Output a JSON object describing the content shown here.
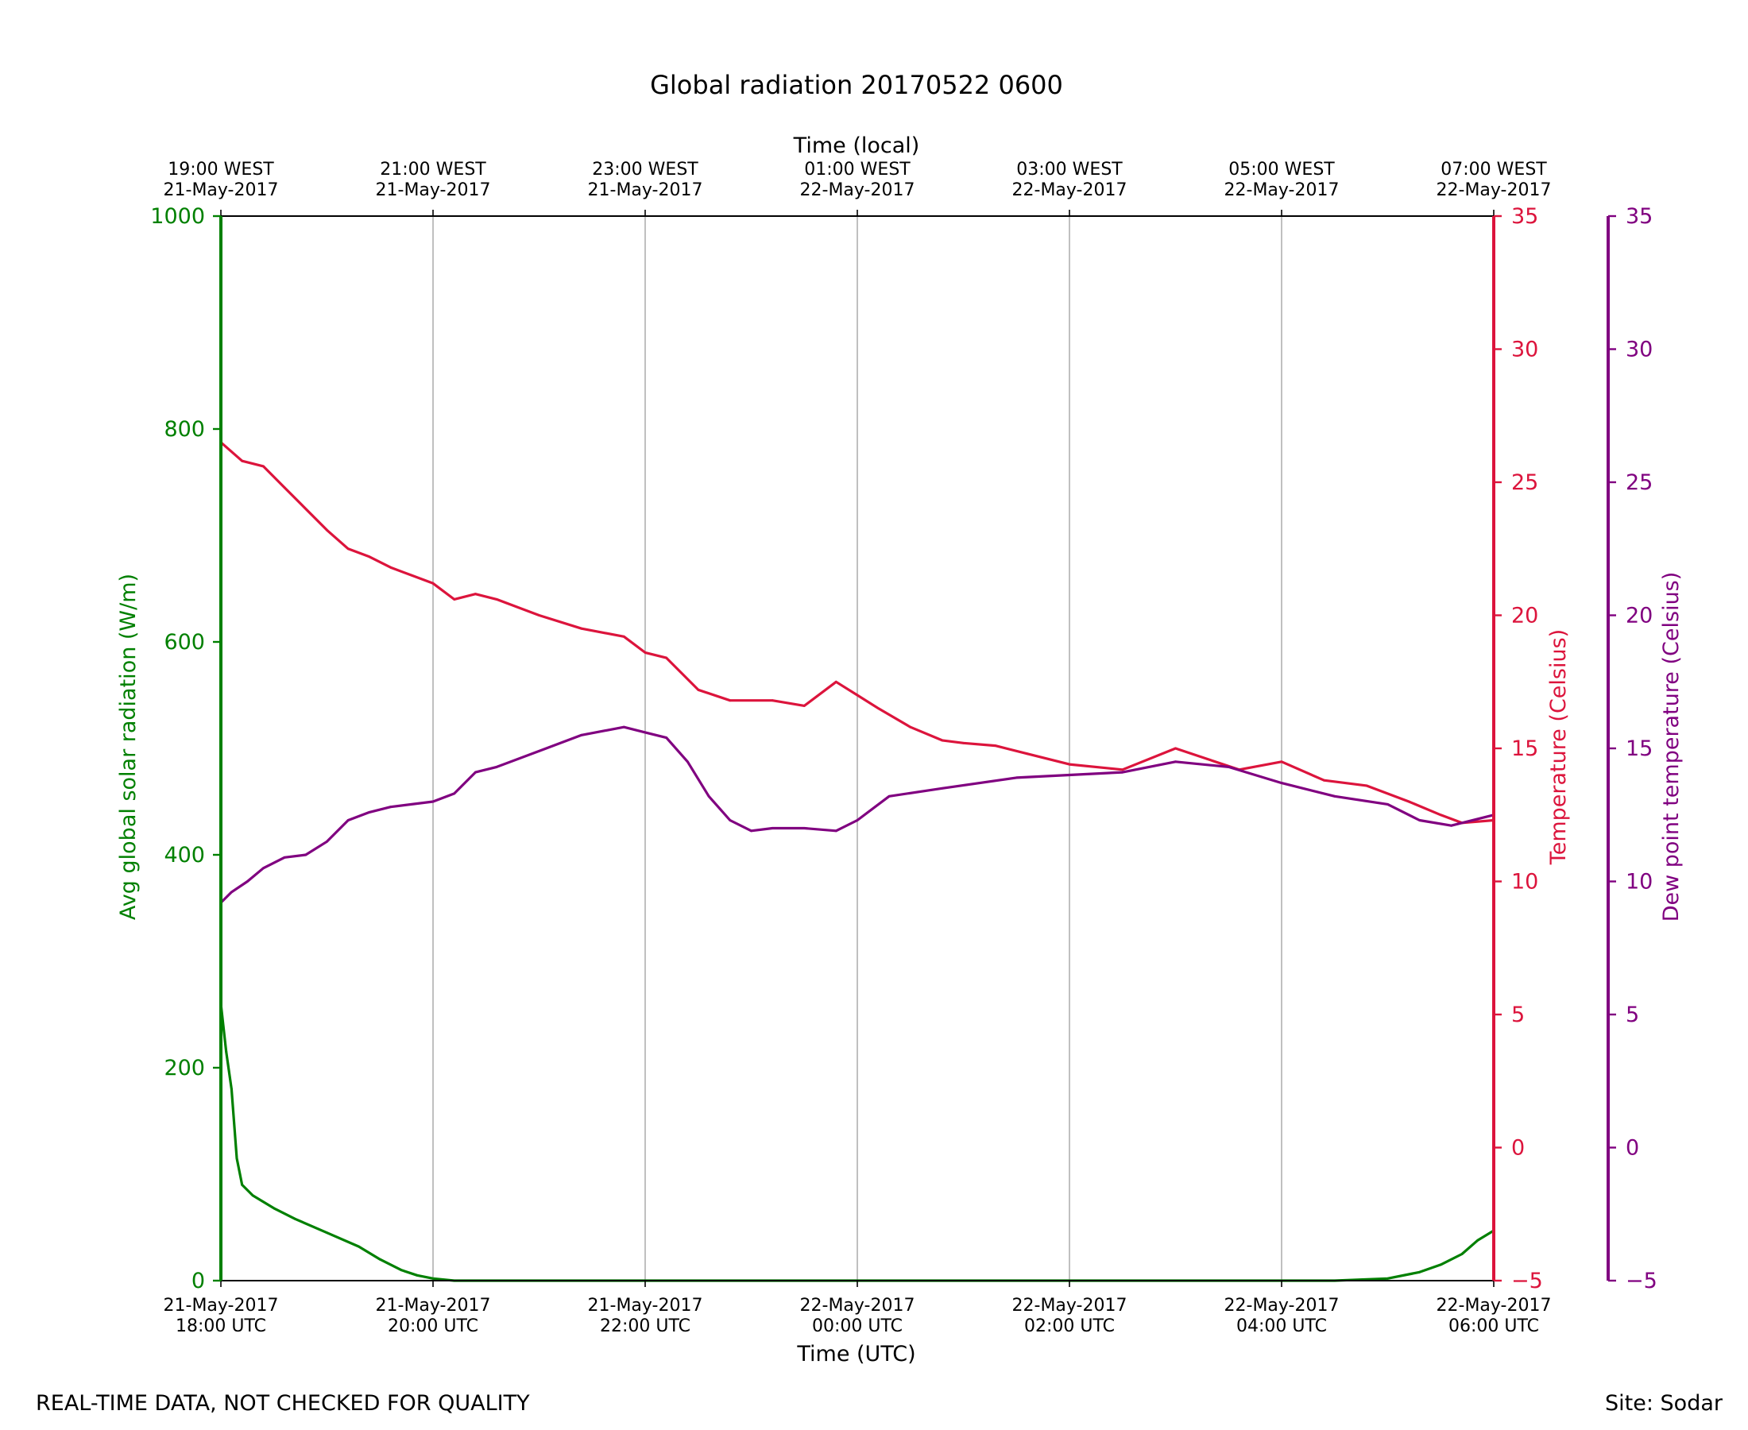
{
  "chart_data": {
    "type": "line",
    "title": "Global radiation 20170522 0600",
    "xlabel": "Time (UTC)",
    "xlabel_top": "Time (local)",
    "x_range_hours": [
      18,
      30
    ],
    "x_ticks_bottom": [
      {
        "line1": "21-May-2017",
        "line2": "18:00 UTC"
      },
      {
        "line1": "21-May-2017",
        "line2": "20:00 UTC"
      },
      {
        "line1": "21-May-2017",
        "line2": "22:00 UTC"
      },
      {
        "line1": "22-May-2017",
        "line2": "00:00 UTC"
      },
      {
        "line1": "22-May-2017",
        "line2": "02:00 UTC"
      },
      {
        "line1": "22-May-2017",
        "line2": "04:00 UTC"
      },
      {
        "line1": "22-May-2017",
        "line2": "06:00 UTC"
      }
    ],
    "x_ticks_top": [
      {
        "line1": "19:00 WEST",
        "line2": "21-May-2017"
      },
      {
        "line1": "21:00 WEST",
        "line2": "21-May-2017"
      },
      {
        "line1": "23:00 WEST",
        "line2": "21-May-2017"
      },
      {
        "line1": "01:00 WEST",
        "line2": "22-May-2017"
      },
      {
        "line1": "03:00 WEST",
        "line2": "22-May-2017"
      },
      {
        "line1": "05:00 WEST",
        "line2": "22-May-2017"
      },
      {
        "line1": "07:00 WEST",
        "line2": "22-May-2017"
      }
    ],
    "grid": "vertical",
    "axes": {
      "radiation": {
        "label": "Avg global solar radiation (W/m)",
        "ylim": [
          0,
          1000
        ],
        "ticks": [
          "0",
          "200",
          "400",
          "600",
          "800",
          "1000"
        ],
        "color": "#008000"
      },
      "temperature": {
        "label": "Temperature (Celsius)",
        "ylim": [
          -5,
          35
        ],
        "ticks": [
          "−5",
          "0",
          "5",
          "10",
          "15",
          "20",
          "25",
          "30",
          "35"
        ],
        "color": "#dc143c"
      },
      "dewpoint": {
        "label": "Dew point temperature (Celsius)",
        "ylim": [
          -5,
          35
        ],
        "ticks": [
          "−5",
          "0",
          "5",
          "10",
          "15",
          "20",
          "25",
          "30",
          "35"
        ],
        "color": "#800080"
      }
    },
    "series": [
      {
        "name": "Avg global solar radiation",
        "axis": "radiation",
        "color": "#008000",
        "x": [
          18.0,
          18.05,
          18.1,
          18.15,
          18.2,
          18.3,
          18.5,
          18.7,
          19.0,
          19.3,
          19.5,
          19.7,
          19.85,
          20.0,
          20.2,
          20.5,
          27.0,
          28.0,
          28.5,
          29.0,
          29.3,
          29.5,
          29.7,
          29.85,
          30.0
        ],
        "values": [
          260,
          215,
          180,
          115,
          90,
          80,
          68,
          58,
          45,
          32,
          20,
          10,
          5,
          2,
          0,
          0,
          0,
          0,
          0,
          2,
          8,
          15,
          25,
          38,
          47
        ]
      },
      {
        "name": "Temperature",
        "axis": "temperature",
        "color": "#dc143c",
        "x": [
          18.0,
          18.2,
          18.4,
          18.6,
          19.0,
          19.2,
          19.4,
          19.6,
          19.8,
          20.0,
          20.2,
          20.4,
          20.6,
          21.0,
          21.4,
          21.8,
          22.0,
          22.2,
          22.5,
          22.8,
          23.2,
          23.5,
          23.8,
          24.0,
          24.2,
          24.5,
          24.8,
          25.0,
          25.3,
          25.6,
          26.0,
          26.5,
          27.0,
          27.3,
          27.6,
          28.0,
          28.4,
          28.8,
          29.2,
          29.5,
          29.7,
          30.0
        ],
        "values": [
          26.5,
          25.8,
          25.6,
          24.8,
          23.2,
          22.5,
          22.2,
          21.8,
          21.5,
          21.2,
          20.6,
          20.8,
          20.6,
          20.0,
          19.5,
          19.2,
          18.6,
          18.4,
          17.2,
          16.8,
          16.8,
          16.6,
          17.5,
          17.0,
          16.5,
          15.8,
          15.3,
          15.2,
          15.1,
          14.8,
          14.4,
          14.2,
          15.0,
          14.6,
          14.2,
          14.5,
          13.8,
          13.6,
          13.0,
          12.5,
          12.2,
          12.3
        ]
      },
      {
        "name": "Dew point temperature",
        "axis": "dewpoint",
        "color": "#800080",
        "x": [
          18.0,
          18.1,
          18.25,
          18.4,
          18.6,
          18.8,
          19.0,
          19.2,
          19.4,
          19.6,
          20.0,
          20.2,
          20.4,
          20.6,
          21.0,
          21.4,
          21.8,
          22.0,
          22.2,
          22.4,
          22.6,
          22.8,
          23.0,
          23.2,
          23.5,
          23.8,
          24.0,
          24.3,
          24.8,
          25.5,
          26.0,
          26.5,
          27.0,
          27.5,
          28.0,
          28.5,
          29.0,
          29.3,
          29.6,
          30.0
        ],
        "values": [
          9.2,
          9.6,
          10.0,
          10.5,
          10.9,
          11.0,
          11.5,
          12.3,
          12.6,
          12.8,
          13.0,
          13.3,
          14.1,
          14.3,
          14.9,
          15.5,
          15.8,
          15.6,
          15.4,
          14.5,
          13.2,
          12.3,
          11.9,
          12.0,
          12.0,
          11.9,
          12.3,
          13.2,
          13.5,
          13.9,
          14.0,
          14.1,
          14.5,
          14.3,
          13.7,
          13.2,
          12.9,
          12.3,
          12.1,
          12.5
        ]
      }
    ]
  },
  "footer": {
    "left": "REAL-TIME DATA, NOT CHECKED FOR QUALITY",
    "right": "Site: Sodar"
  }
}
